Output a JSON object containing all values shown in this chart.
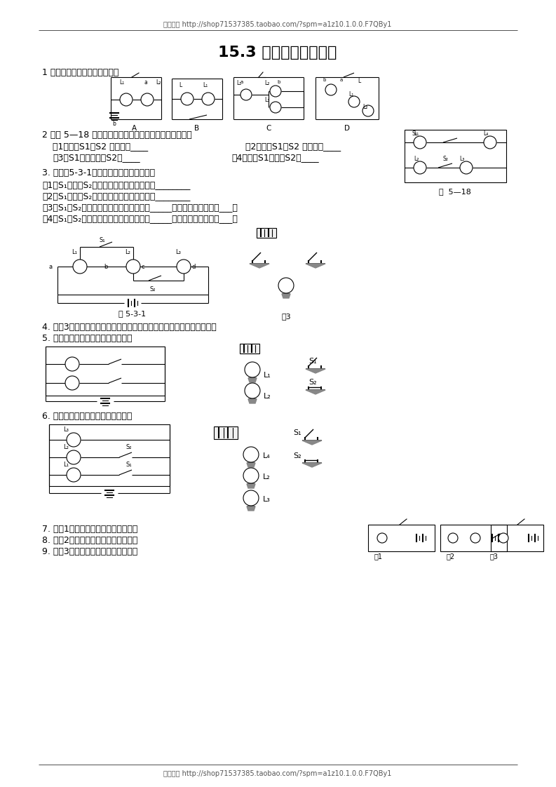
{
  "bg_color": "#ffffff",
  "header_text": "每天教育 http://shop71537385.taobao.com/?spm=a1z10.1.0.0.F7QBy1",
  "footer_text": "每天教育 http://shop71537385.taobao.com/?spm=a1z10.1.0.0.F7QBy1",
  "title": "15.3 串联与并联练习题",
  "q1": "1 分别说出每幅图的连接方式？",
  "q2_intro": "2 如图 5—18 所示的电路，判断下列情况电路连接关系：",
  "q2_1a": "（1）开关S1、S2 均打开：____",
  "q2_1b": "（2）开关S1、S2 均闭合：____",
  "q2_2a": "（3）S1开关、闭合S2：____",
  "q2_2b": "（4）闭合S1、打开S2。____",
  "q3_intro": "3. 据如图5-3-1所示电路，回答下列问题：",
  "q3_1": "（1）S₁闭合、S₂断开时，电流经过的电灯是________",
  "q3_2": "（2）S₁断开、S₂闭合时，电流经过的电灯是________",
  "q3_3": "（3）S₁、S₂都断开时，电流经过的电灯是_____，它们的连接方式为___。",
  "q3_4": "（4）S₁、S₂都闭合时，电流经过的电灯是_____，它们的连接方式为___。",
  "q4": "4. 将图3中给出的元件连接成电路，要求每只开关都能控制灯的亮与灭。",
  "q5": "5. 按照电路图将实物元件连接起来。",
  "q6": "6. 按照电路图将实物元件连接起来。",
  "q7": "7. 把图1中各电路元件接成串联电路。",
  "q8": "8. 把图2中各电路元件接成并联电路。",
  "q9": "9. 把图3中各电路元件接成串联电路。",
  "fig531_label": "图 5-3-1",
  "fig3_label": "图3",
  "fig518_label": "图  5—18"
}
